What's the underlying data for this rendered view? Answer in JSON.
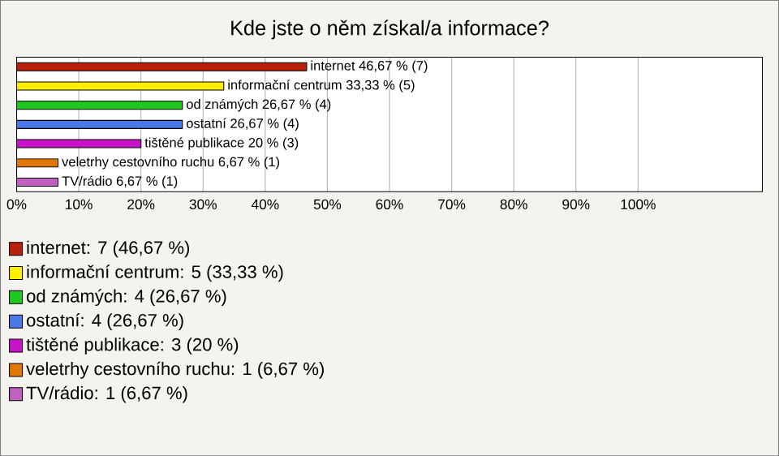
{
  "chart_data": {
    "type": "bar",
    "orientation": "horizontal",
    "title": "Kde jste o něm získal/a informace?",
    "categories": [
      null,
      null,
      null,
      null,
      null,
      null,
      null
    ],
    "series": [
      {
        "name": "internet: 7 (46,67 %)",
        "color": "#b8200c",
        "values": [
          46.67,
          null,
          null,
          null,
          null,
          null,
          null
        ],
        "value_labels": [
          "internet 46,67 % (7)",
          null,
          null,
          null,
          null,
          null,
          null
        ]
      },
      {
        "name": "informační centrum: 5 (33,33 %)",
        "color": "#ffee00",
        "values": [
          null,
          33.33,
          null,
          null,
          null,
          null,
          null
        ],
        "value_labels": [
          null,
          "informační centrum 33,33 % (5)",
          null,
          null,
          null,
          null,
          null
        ]
      },
      {
        "name": "od známých: 4 (26,67 %)",
        "color": "#1ec81e",
        "values": [
          null,
          null,
          26.67,
          null,
          null,
          null,
          null
        ],
        "value_labels": [
          null,
          null,
          "od známých 26,67 % (4)",
          null,
          null,
          null,
          null
        ]
      },
      {
        "name": "ostatní: 4 (26,67 %)",
        "color": "#4a78e8",
        "values": [
          null,
          null,
          null,
          26.67,
          null,
          null,
          null
        ],
        "value_labels": [
          null,
          null,
          null,
          "ostatní 26,67 % (4)",
          null,
          null,
          null
        ]
      },
      {
        "name": "tištěné publikace: 3 (20 %)",
        "color": "#c814c8",
        "values": [
          null,
          null,
          null,
          null,
          20,
          null,
          null
        ],
        "value_labels": [
          null,
          null,
          null,
          null,
          "tištěné publikace 20 % (3)",
          null,
          null
        ]
      },
      {
        "name": "veletrhy cestovního ruchu: 1 (6,67 %)",
        "color": "#e07800",
        "values": [
          null,
          null,
          null,
          null,
          null,
          6.67,
          null
        ],
        "value_labels": [
          null,
          null,
          null,
          null,
          null,
          "veletrhy cestovního ruchu 6,67 % (1)",
          null
        ]
      },
      {
        "name": "TV/rádio: 1 (6,67 %)",
        "color": "#c060c0",
        "values": [
          null,
          null,
          null,
          null,
          null,
          null,
          6.67
        ],
        "value_labels": [
          null,
          null,
          null,
          null,
          null,
          null,
          "TV/rádio 6,67 % (1)"
        ]
      }
    ],
    "xlim": [
      0,
      120
    ],
    "xticks": [
      {
        "value": 0,
        "label": "0%"
      },
      {
        "value": 10,
        "label": "10%"
      },
      {
        "value": 20,
        "label": "20%"
      },
      {
        "value": 30,
        "label": "30%"
      },
      {
        "value": 40,
        "label": "40%"
      },
      {
        "value": 50,
        "label": "50%"
      },
      {
        "value": 60,
        "label": "60%"
      },
      {
        "value": 70,
        "label": "70%"
      },
      {
        "value": 80,
        "label": "80%"
      },
      {
        "value": 90,
        "label": "90%"
      },
      {
        "value": 100,
        "label": "100%"
      }
    ],
    "grid": "x",
    "legend": "bottom",
    "tick_labels": "x"
  }
}
